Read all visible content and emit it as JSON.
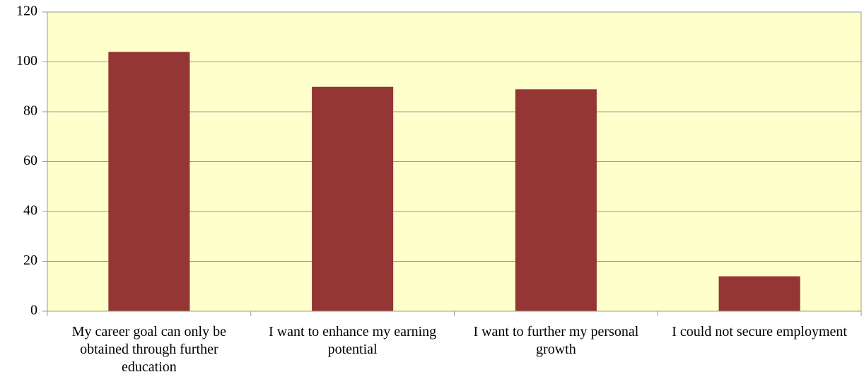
{
  "chart_data": {
    "type": "bar",
    "categories": [
      "My career goal can only be obtained through further education",
      "I want to enhance my earning potential",
      "I want to further my personal growth",
      "I could not secure employment"
    ],
    "values": [
      104,
      90,
      89,
      14
    ],
    "color": "#943634",
    "background": "#ffffcc",
    "ylim": [
      0,
      120
    ],
    "yticks": [
      0,
      20,
      40,
      60,
      80,
      100,
      120
    ],
    "grid": true
  }
}
